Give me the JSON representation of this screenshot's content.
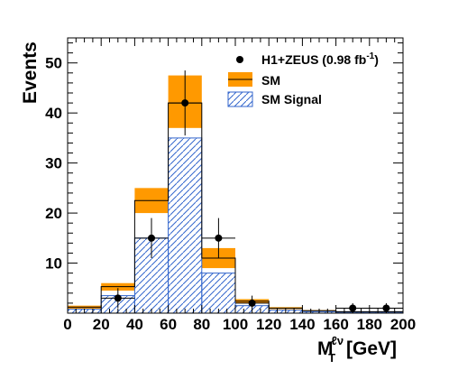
{
  "chart_data": {
    "type": "bar",
    "ylabel": "Events",
    "xlabel_main": "M",
    "xlabel_sub": "T",
    "xlabel_sup": "ℓν",
    "xlabel_unit": "[GeV]",
    "xlim": [
      0,
      200
    ],
    "ylim": [
      0,
      55
    ],
    "x_ticks": [
      0,
      20,
      40,
      60,
      80,
      100,
      120,
      140,
      160,
      180,
      200
    ],
    "y_ticks": [
      10,
      20,
      30,
      40,
      50
    ],
    "bin_edges": [
      0,
      20,
      40,
      60,
      80,
      100,
      120,
      140,
      160,
      180,
      200
    ],
    "series": [
      {
        "name": "SM",
        "style": "orange band with central line",
        "color": "#FF9900",
        "central": [
          1.2,
          5.3,
          22.5,
          42.0,
          11.0,
          2.4,
          1.0,
          0.5,
          0.3,
          0.3
        ],
        "band_low": [
          0.9,
          4.5,
          20.0,
          37.0,
          9.0,
          2.0,
          0.8,
          0.4,
          0.25,
          0.25
        ],
        "band_high": [
          1.5,
          6.0,
          25.0,
          47.5,
          13.0,
          2.8,
          1.2,
          0.6,
          0.35,
          0.35
        ]
      },
      {
        "name": "SM Signal",
        "style": "blue hatched",
        "color": "#3366CC",
        "values": [
          0.8,
          3.5,
          15.0,
          35.0,
          8.0,
          1.5,
          0.6,
          0.3,
          0.2,
          0.2
        ]
      },
      {
        "name": "H1+ZEUS (0.98 fb",
        "name_sup": "-1",
        "name_suffix": ")",
        "style": "black points with error bars",
        "color": "#000000",
        "x": [
          30,
          50,
          70,
          90,
          110,
          170,
          190
        ],
        "y": [
          3,
          15,
          42,
          15,
          2,
          1,
          1
        ],
        "err": [
          2.0,
          4.0,
          6.5,
          4.0,
          1.5,
          1.0,
          1.0
        ]
      }
    ]
  }
}
